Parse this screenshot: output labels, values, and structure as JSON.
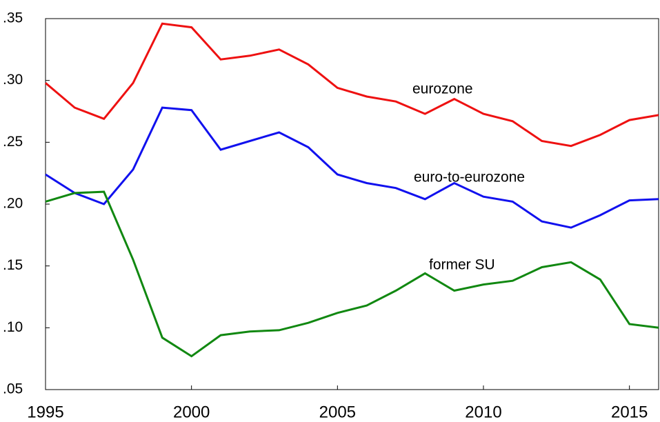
{
  "chart_data": {
    "type": "line",
    "x": [
      1995,
      1996,
      1997,
      1998,
      1999,
      2000,
      2001,
      2002,
      2003,
      2004,
      2005,
      2006,
      2007,
      2008,
      2009,
      2010,
      2011,
      2012,
      2013,
      2014,
      2015,
      2016
    ],
    "series": [
      {
        "name": "eurozone",
        "color": "#ee1111",
        "values": [
          0.298,
          0.278,
          0.269,
          0.298,
          0.346,
          0.343,
          0.317,
          0.32,
          0.325,
          0.313,
          0.294,
          0.287,
          0.283,
          0.273,
          0.285,
          0.273,
          0.267,
          0.251,
          0.247,
          0.256,
          0.268,
          0.272
        ]
      },
      {
        "name": "euro-to-eurozone",
        "color": "#1111ee",
        "values": [
          0.224,
          0.209,
          0.2,
          0.228,
          0.278,
          0.276,
          0.244,
          0.251,
          0.258,
          0.246,
          0.224,
          0.217,
          0.213,
          0.204,
          0.217,
          0.206,
          0.202,
          0.186,
          0.181,
          0.191,
          0.203,
          0.204
        ]
      },
      {
        "name": "former SU",
        "color": "#118811",
        "values": [
          0.202,
          0.209,
          0.21,
          0.155,
          0.092,
          0.077,
          0.094,
          0.097,
          0.098,
          0.104,
          0.112,
          0.118,
          0.13,
          0.144,
          0.13,
          0.135,
          0.138,
          0.149,
          0.153,
          0.139,
          0.103,
          0.1
        ]
      }
    ],
    "xlim": [
      1995,
      2016
    ],
    "xticks": [
      1995,
      2000,
      2005,
      2010,
      2015
    ],
    "ylim": [
      0.05,
      0.35
    ],
    "yticks": [
      {
        "value": 0.05,
        "label": ".05"
      },
      {
        "value": 0.1,
        "label": ".10"
      },
      {
        "value": 0.15,
        "label": ".15"
      },
      {
        "value": 0.2,
        "label": ".20"
      },
      {
        "value": 0.25,
        "label": ".25"
      },
      {
        "value": 0.3,
        "label": ".30"
      },
      {
        "value": 0.35,
        "label": ".35"
      }
    ],
    "grid": false
  }
}
